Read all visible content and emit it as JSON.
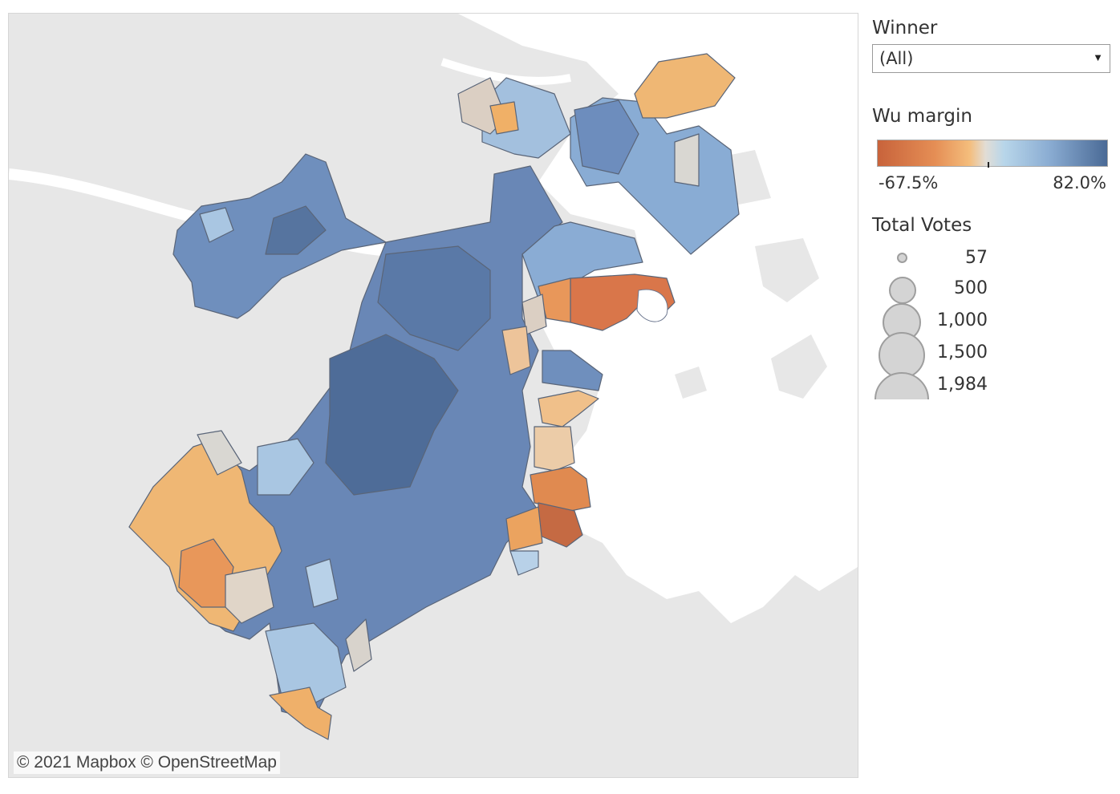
{
  "map": {
    "attribution": "© 2021 Mapbox  © OpenStreetMap"
  },
  "filter": {
    "title": "Winner",
    "value": "(All)"
  },
  "color_legend": {
    "title": "Wu margin",
    "min_label": "-67.5%",
    "max_label": "82.0%",
    "colors": {
      "low": "#c8633b",
      "mid": "#e2ddd5",
      "high": "#4a6a96"
    }
  },
  "size_legend": {
    "title": "Total Votes",
    "items": [
      {
        "label": "57"
      },
      {
        "label": "500"
      },
      {
        "label": "1,000"
      },
      {
        "label": "1,500"
      },
      {
        "label": "1,984"
      }
    ]
  }
}
